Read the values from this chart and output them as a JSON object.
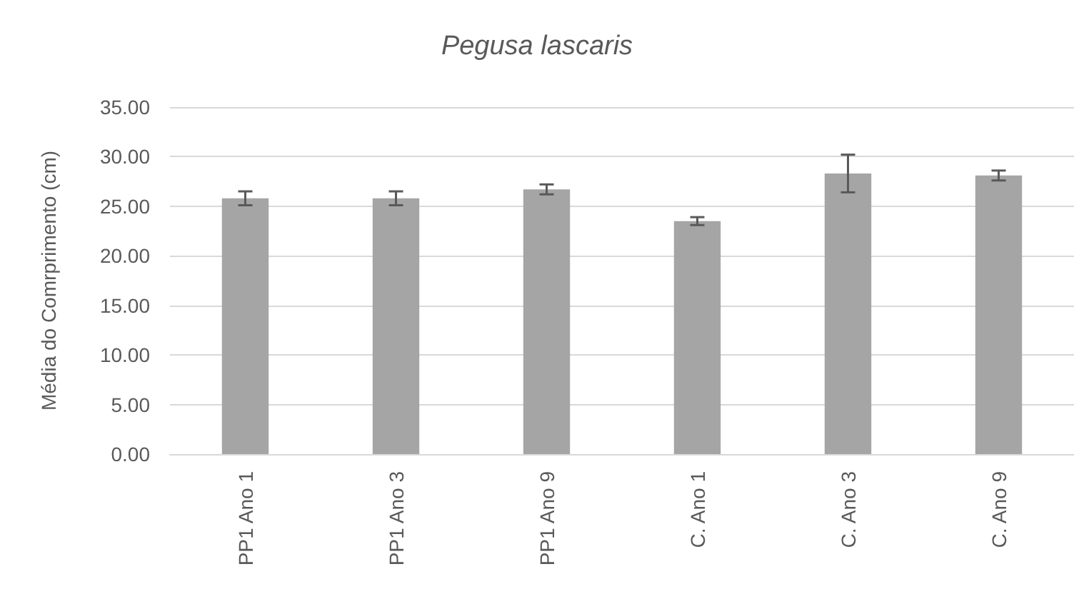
{
  "chart_data": {
    "type": "bar",
    "title": "Pegusa lascaris",
    "ylabel": "Média do Comrprimento (cm)",
    "categories": [
      "PP1 Ano 1",
      "PP1 Ano 3",
      "PP1 Ano 9",
      "C. Ano 1",
      "C. Ano 3",
      "C. Ano 9"
    ],
    "values": [
      25.8,
      25.8,
      26.7,
      23.5,
      28.3,
      28.1
    ],
    "errors": [
      0.7,
      0.7,
      0.5,
      0.4,
      1.9,
      0.5
    ],
    "color": "#a5a5a5",
    "ylim": [
      0,
      35
    ],
    "yticks": [
      {
        "value": 0,
        "label": "0.00"
      },
      {
        "value": 5,
        "label": "5.00"
      },
      {
        "value": 10,
        "label": "10.00"
      },
      {
        "value": 15,
        "label": "15.00"
      },
      {
        "value": 20,
        "label": "20.00"
      },
      {
        "value": 25,
        "label": "25.00"
      },
      {
        "value": 30,
        "label": "30.00"
      },
      {
        "value": 35,
        "label": "35.00"
      }
    ],
    "grid": true
  }
}
